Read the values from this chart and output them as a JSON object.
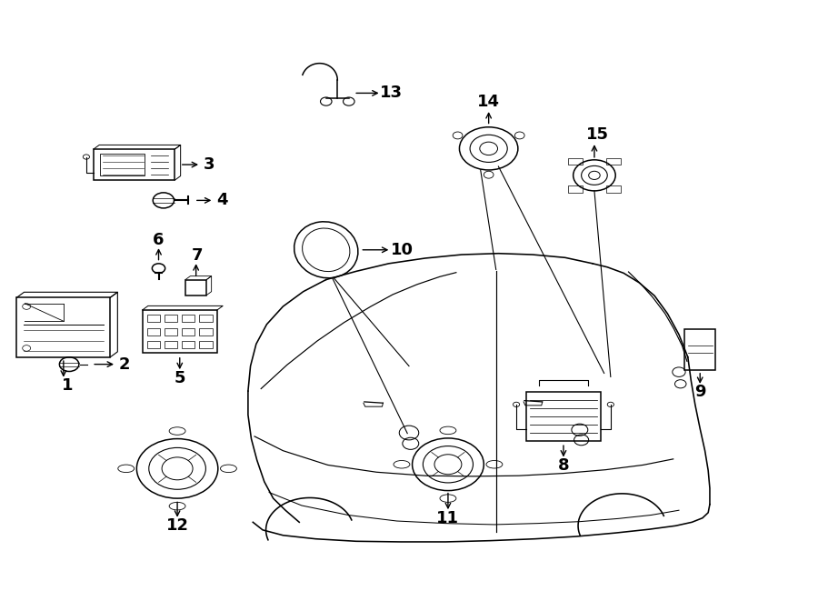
{
  "bg_color": "#ffffff",
  "line_color": "#000000",
  "lw": 1.1,
  "label_fontsize": 13
}
